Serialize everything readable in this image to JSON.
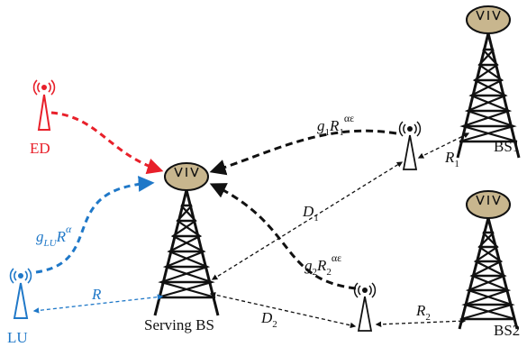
{
  "colors": {
    "ed": "#e8202a",
    "lu": "#1f78c8",
    "ink": "#111111",
    "dish": "#c8b68e"
  },
  "labels": {
    "ed": "ED",
    "lu": "LU",
    "serving_bs": "Serving BS",
    "bs1": "BS1",
    "bs2": "BS2",
    "g_lu": "g",
    "g_lu_sub": "LU",
    "g_lu_R": "R",
    "g_lu_sup": "α",
    "R": "R",
    "D1": "D",
    "D1_sub": "1",
    "D2": "D",
    "D2_sub": "2",
    "R1": "R",
    "R1_sub": "1",
    "R2": "R",
    "R2_sub": "2",
    "g1": "g",
    "g1_sub": "1",
    "g1_R": "R",
    "g1_R_sub": "1",
    "g1_sup": "αε",
    "g2": "g",
    "g2_sub": "2",
    "g2_R": "R",
    "g2_R_sub": "2",
    "g2_sup": "αε"
  }
}
